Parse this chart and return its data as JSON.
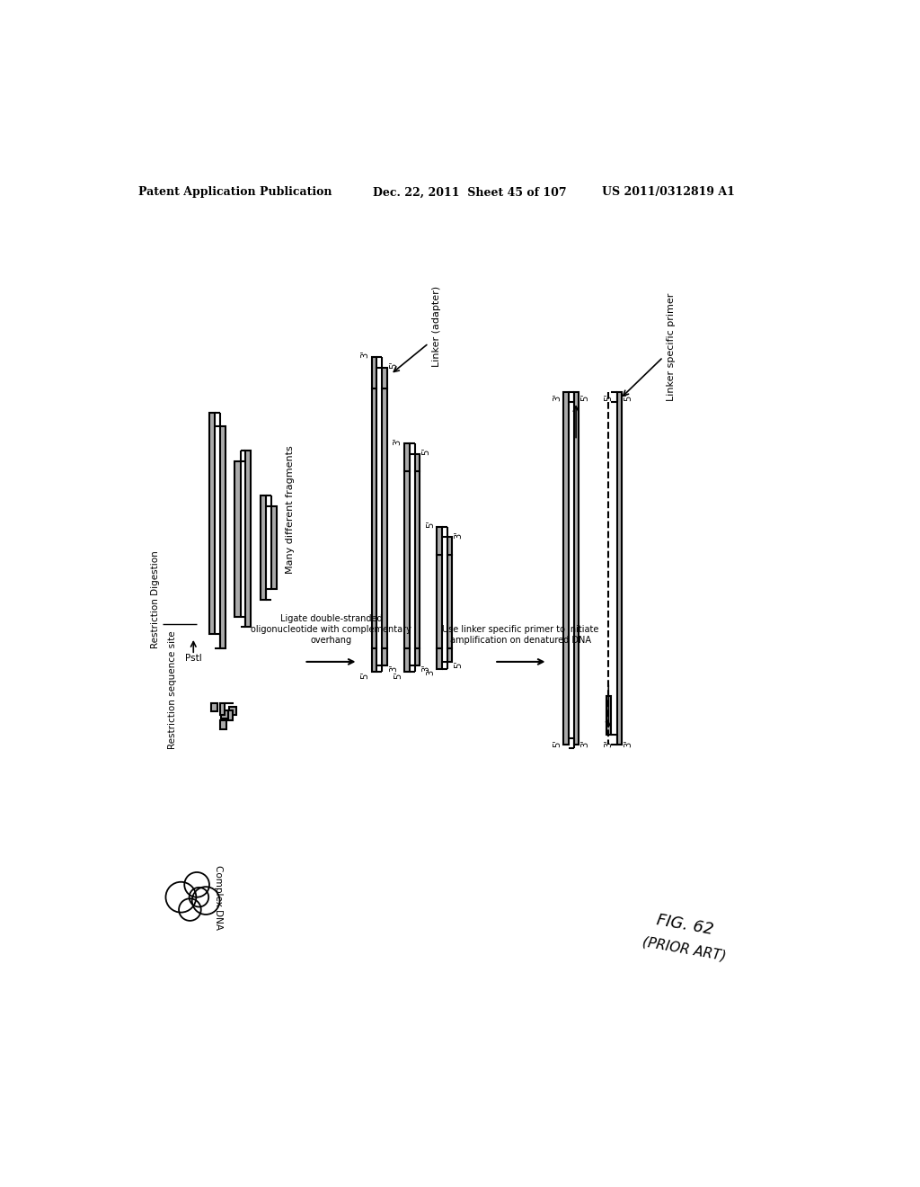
{
  "header_left": "Patent Application Publication",
  "header_mid": "Dec. 22, 2011  Sheet 45 of 107",
  "header_right": "US 2011/0312819 A1",
  "bg_color": "#ffffff"
}
